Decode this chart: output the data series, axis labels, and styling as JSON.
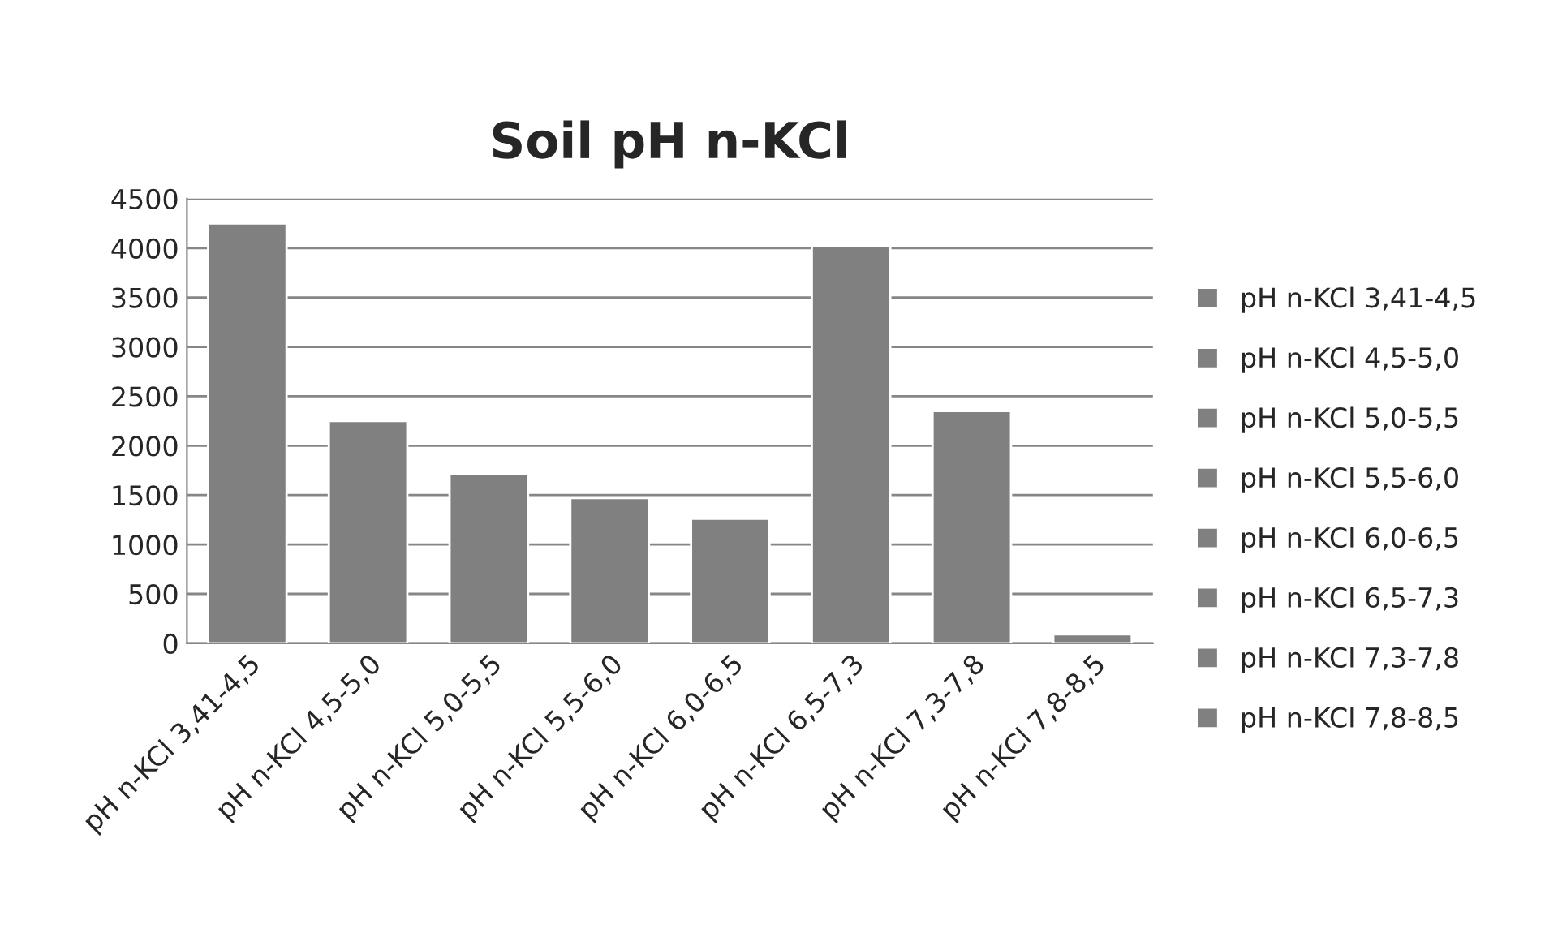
{
  "chart_data": {
    "type": "bar",
    "title": "Soil pH n-KCl",
    "stacked": true,
    "categories": [
      "pH n-KCl 3,41-4,5",
      "pH n-KCl 4,5-5,0",
      "pH n-KCl 5,0-5,5",
      "pH n-KCl 5,5-6,0",
      "pH n-KCl 6,0-6,5",
      "pH n-KCl 6,5-7,3",
      "pH n-KCl 7,3-7,8",
      "pH n-KCl 7,8-8,5"
    ],
    "series": [
      {
        "name": "pH n-KCl 3,41-4,5",
        "color": "#808080",
        "values": [
          4250,
          null,
          null,
          null,
          null,
          null,
          null,
          null
        ]
      },
      {
        "name": "pH n-KCl 4,5-5,0",
        "color": "#808080",
        "values": [
          null,
          2250,
          null,
          null,
          null,
          null,
          null,
          null
        ]
      },
      {
        "name": "pH n-KCl 5,0-5,5",
        "color": "#808080",
        "values": [
          null,
          null,
          1710,
          null,
          null,
          null,
          null,
          null
        ]
      },
      {
        "name": "pH n-KCl 5,5-6,0",
        "color": "#808080",
        "values": [
          null,
          null,
          null,
          1470,
          null,
          null,
          null,
          null
        ]
      },
      {
        "name": "pH n-KCl 6,0-6,5",
        "color": "#808080",
        "values": [
          null,
          null,
          null,
          null,
          1260,
          null,
          null,
          null
        ]
      },
      {
        "name": "pH n-KCl 6,5-7,3",
        "color": "#808080",
        "values": [
          null,
          null,
          null,
          null,
          null,
          4020,
          null,
          null
        ]
      },
      {
        "name": "pH n-KCl 7,3-7,8",
        "color": "#808080",
        "values": [
          null,
          null,
          null,
          null,
          null,
          null,
          2350,
          null
        ]
      },
      {
        "name": "pH n-KCl 7,8-8,5",
        "color": "#808080",
        "values": [
          null,
          null,
          null,
          null,
          null,
          null,
          null,
          90
        ]
      }
    ],
    "ylim": [
      0,
      4500
    ],
    "yticks": [
      0,
      500,
      1000,
      1500,
      2000,
      2500,
      3000,
      3500,
      4000,
      4500
    ],
    "grid": "y",
    "legend": "right"
  }
}
